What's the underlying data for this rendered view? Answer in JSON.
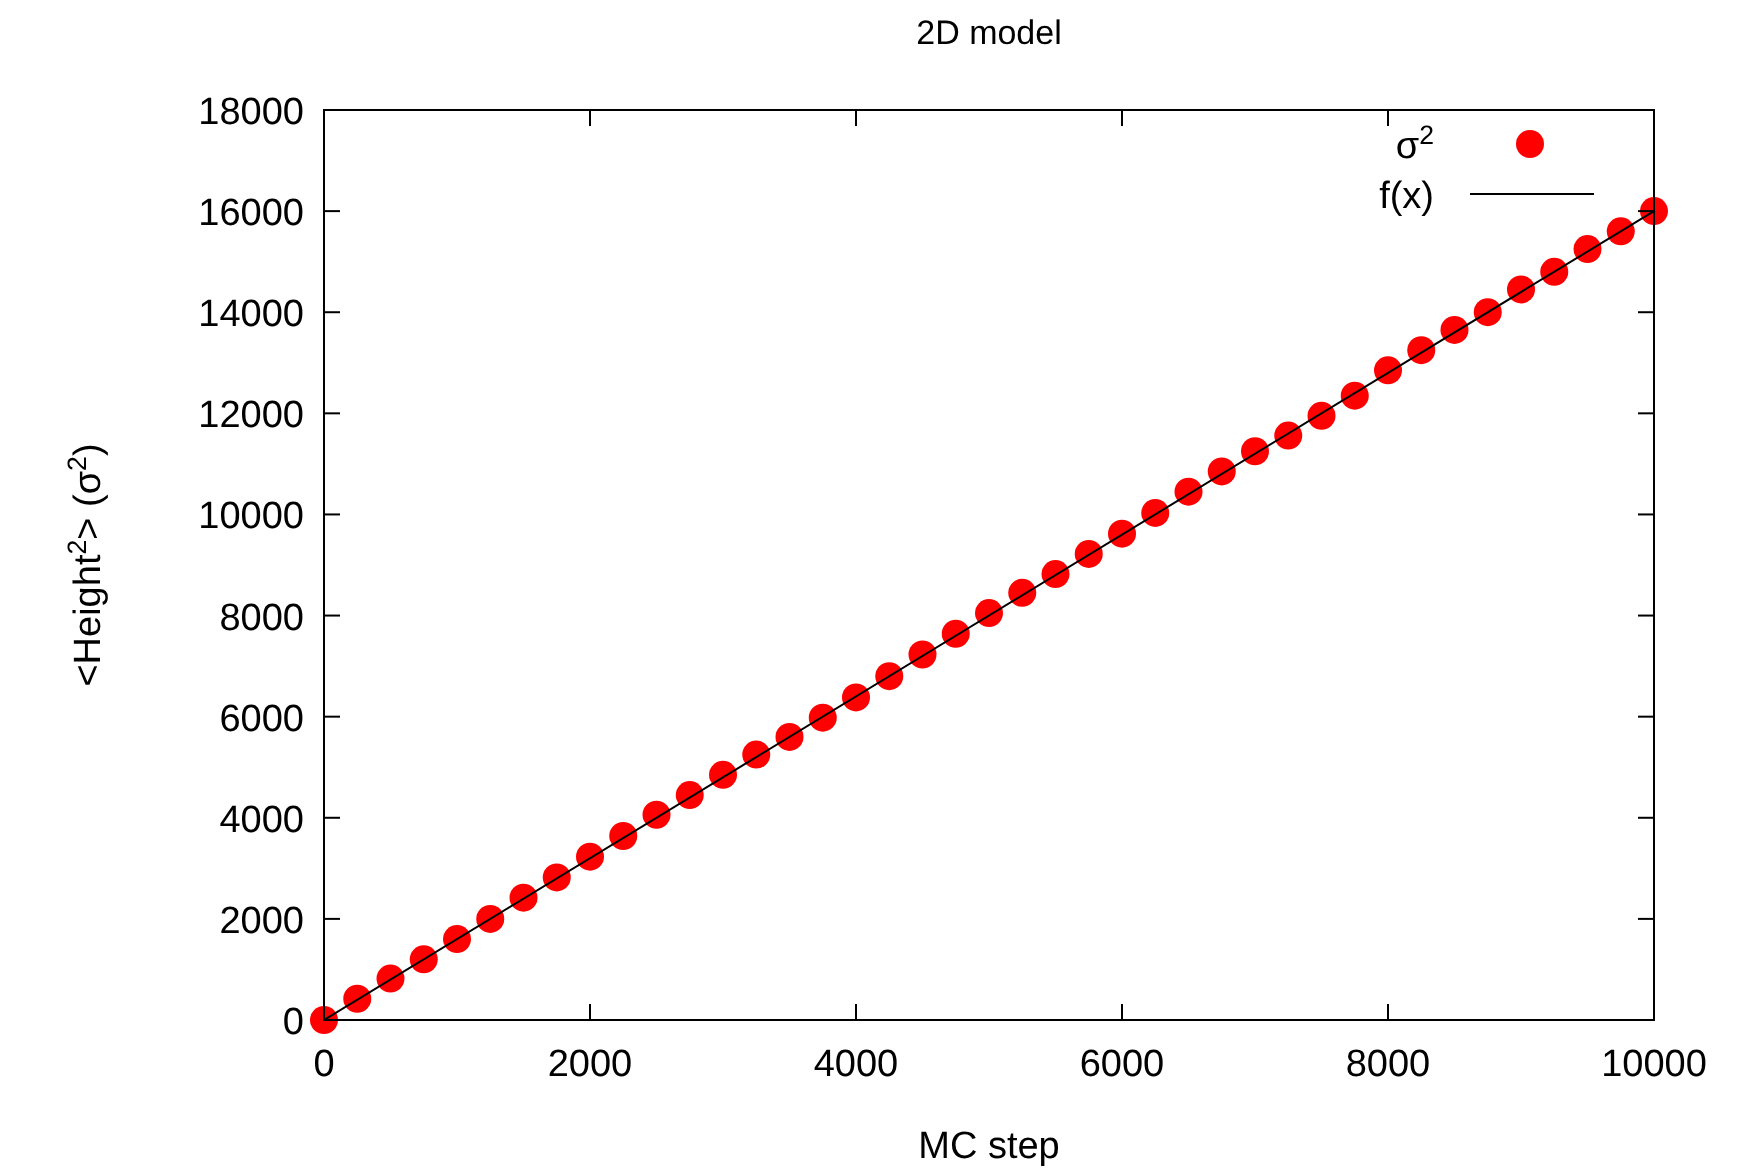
{
  "chart_data": {
    "type": "scatter",
    "title": "2D model",
    "xlabel": "MC step",
    "ylabel": "<Height$^{2}$> (σ$^{2}$)",
    "xlim": [
      0,
      10000
    ],
    "xticks": [
      0,
      2000,
      4000,
      6000,
      8000,
      10000
    ],
    "ylim": [
      0,
      18000
    ],
    "yticks": [
      0,
      2000,
      4000,
      6000,
      8000,
      10000,
      12000,
      14000,
      16000,
      18000
    ],
    "legend": "top right",
    "grid": false,
    "series": [
      {
        "name": "σ$^{2}$",
        "marker": "circle",
        "color": "#ff0000",
        "x": [
          0,
          250,
          500,
          750,
          1000,
          1250,
          1500,
          1750,
          2000,
          2250,
          2500,
          2750,
          3000,
          3250,
          3500,
          3750,
          4000,
          4250,
          4500,
          4750,
          5000,
          5250,
          5500,
          5750,
          6000,
          6250,
          6500,
          6750,
          7000,
          7250,
          7500,
          7750,
          8000,
          8250,
          8500,
          8750,
          9000,
          9250,
          9500,
          9750,
          10000
        ],
        "values": [
          0,
          420,
          820,
          1200,
          1600,
          2000,
          2420,
          2820,
          3230,
          3640,
          4060,
          4450,
          4850,
          5250,
          5600,
          5980,
          6380,
          6800,
          7230,
          7640,
          8050,
          8450,
          8820,
          9220,
          9620,
          10030,
          10450,
          10850,
          11250,
          11560,
          11950,
          12350,
          12850,
          13250,
          13650,
          14000,
          14450,
          14800,
          15250,
          15600,
          16000
        ]
      },
      {
        "name": "f(x)",
        "type": "line",
        "marker": "none",
        "color": "#000000",
        "x": [
          0,
          10000
        ],
        "values": [
          0,
          16000
        ]
      }
    ]
  }
}
